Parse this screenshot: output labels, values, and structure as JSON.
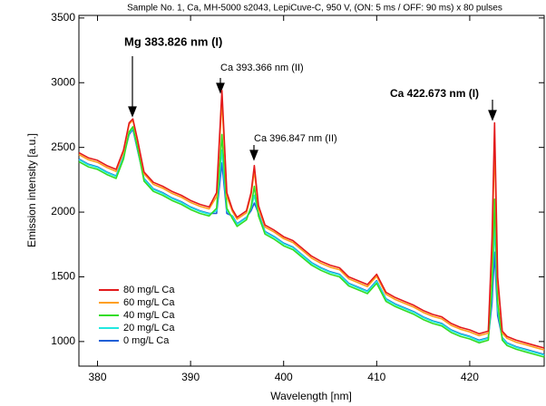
{
  "chart_data": {
    "type": "line",
    "title": "Sample No. 1, Ca, MH-5000 s2043, LepiCuve-C, 950 V, (ON: 5 ms / OFF: 90 ms) x 80 pulses",
    "x_label": "Wavelength [nm]",
    "y_label": "Emission intensity [a.u.]",
    "xlim": [
      378,
      428
    ],
    "ylim": [
      810,
      3520
    ],
    "xticks": [
      380,
      390,
      400,
      410,
      420
    ],
    "yticks": [
      1000,
      1500,
      2000,
      2500,
      3000,
      3500
    ],
    "legend": "lower left",
    "annotations": [
      "Mg 383.826 nm (I)",
      "Ca 393.366 nm (II)",
      "Ca 396.847 nm (II)",
      "Ca 422.673 nm (I)"
    ],
    "x": [
      378,
      379,
      380,
      381,
      382,
      382.8,
      383.4,
      383.8,
      384.3,
      385,
      386,
      387,
      388,
      389,
      390,
      391,
      392,
      392.8,
      393.37,
      393.9,
      394.5,
      395,
      396,
      396.5,
      396.85,
      397.3,
      398,
      399,
      400,
      401,
      402,
      403,
      404,
      405,
      406,
      407,
      408,
      409,
      410,
      411,
      412,
      413,
      414,
      415,
      416,
      417,
      418,
      419,
      420,
      421,
      422,
      422.4,
      422.67,
      423,
      423.5,
      424,
      425,
      426,
      427,
      428
    ],
    "series": [
      {
        "name": "80 mg/L Ca",
        "color": "#e31a1c",
        "values": [
          2460,
          2420,
          2400,
          2360,
          2330,
          2480,
          2690,
          2720,
          2560,
          2310,
          2230,
          2200,
          2160,
          2130,
          2090,
          2060,
          2040,
          2150,
          2940,
          2150,
          2020,
          1960,
          2010,
          2150,
          2360,
          2050,
          1900,
          1860,
          1810,
          1780,
          1720,
          1660,
          1620,
          1590,
          1570,
          1500,
          1470,
          1440,
          1520,
          1380,
          1340,
          1310,
          1280,
          1240,
          1210,
          1190,
          1140,
          1110,
          1090,
          1060,
          1080,
          1800,
          2690,
          1500,
          1080,
          1040,
          1010,
          990,
          970,
          950
        ]
      },
      {
        "name": "60 mg/L Ca",
        "color": "#ff9f1a",
        "values": [
          2445,
          2405,
          2385,
          2345,
          2315,
          2465,
          2680,
          2710,
          2550,
          2295,
          2215,
          2185,
          2145,
          2115,
          2075,
          2045,
          2025,
          2120,
          2860,
          2120,
          2005,
          1945,
          1995,
          2130,
          2320,
          2030,
          1885,
          1845,
          1795,
          1765,
          1705,
          1645,
          1605,
          1575,
          1555,
          1485,
          1455,
          1425,
          1505,
          1365,
          1325,
          1295,
          1265,
          1225,
          1195,
          1175,
          1125,
          1095,
          1075,
          1045,
          1065,
          1720,
          2540,
          1450,
          1065,
          1025,
          995,
          975,
          955,
          935
        ]
      },
      {
        "name": "40 mg/L Ca",
        "color": "#33dd22",
        "values": [
          2390,
          2350,
          2330,
          2290,
          2260,
          2410,
          2620,
          2660,
          2500,
          2240,
          2160,
          2130,
          2090,
          2060,
          2020,
          1990,
          1970,
          2030,
          2600,
          2030,
          1950,
          1890,
          1940,
          2040,
          2200,
          1970,
          1830,
          1790,
          1740,
          1710,
          1650,
          1590,
          1550,
          1520,
          1500,
          1430,
          1400,
          1370,
          1450,
          1310,
          1270,
          1240,
          1210,
          1170,
          1140,
          1120,
          1070,
          1040,
          1020,
          990,
          1010,
          1450,
          2100,
          1300,
          1010,
          970,
          940,
          920,
          900,
          880
        ]
      },
      {
        "name": "20 mg/L Ca",
        "color": "#22e8e0",
        "values": [
          2405,
          2365,
          2345,
          2305,
          2275,
          2425,
          2610,
          2650,
          2490,
          2255,
          2175,
          2145,
          2105,
          2075,
          2035,
          2005,
          1985,
          2010,
          2480,
          2010,
          1965,
          1905,
          1955,
          2030,
          2130,
          1980,
          1845,
          1805,
          1755,
          1725,
          1665,
          1605,
          1565,
          1535,
          1515,
          1445,
          1415,
          1385,
          1465,
          1325,
          1285,
          1255,
          1225,
          1185,
          1155,
          1135,
          1085,
          1055,
          1035,
          1005,
          1025,
          1380,
          1900,
          1250,
          1025,
          985,
          955,
          935,
          915,
          895
        ]
      },
      {
        "name": "0 mg/L Ca",
        "color": "#1f5fd6",
        "values": [
          2410,
          2370,
          2350,
          2310,
          2280,
          2430,
          2600,
          2640,
          2480,
          2260,
          2180,
          2150,
          2110,
          2080,
          2040,
          2010,
          1990,
          1990,
          2380,
          1990,
          1970,
          1910,
          1960,
          2010,
          2070,
          1990,
          1850,
          1810,
          1760,
          1730,
          1670,
          1610,
          1570,
          1540,
          1520,
          1450,
          1420,
          1390,
          1470,
          1330,
          1290,
          1260,
          1230,
          1190,
          1160,
          1140,
          1090,
          1060,
          1040,
          1010,
          1030,
          1300,
          1690,
          1200,
          1030,
          990,
          960,
          940,
          920,
          900
        ]
      }
    ]
  }
}
